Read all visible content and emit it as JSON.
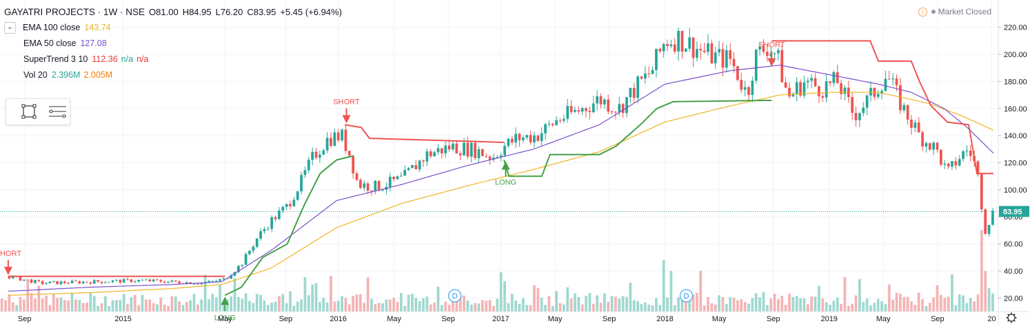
{
  "header": {
    "symbol": "GAYATRI PROJECTS · 1W · NSE",
    "open": "O81.00",
    "high": "H84.95",
    "low": "L76.20",
    "close": "C83.95",
    "change": "+5.45 (+6.94%)",
    "market_status": "Market Closed",
    "status_icon": "warning-icon"
  },
  "indicators": [
    {
      "name": "EMA 100 close",
      "values": [
        "143.74"
      ],
      "colors": [
        "#f0b323"
      ]
    },
    {
      "name": "EMA 50 close",
      "values": [
        "127.08"
      ],
      "colors": [
        "#7b4fc9"
      ]
    },
    {
      "name": "SuperTrend 3 10",
      "values": [
        "112.36",
        "n/a",
        "n/a"
      ],
      "colors": [
        "#e53935",
        "#26a69a",
        "#e53935"
      ]
    },
    {
      "name": "Vol 20",
      "values": [
        "2.396M",
        "2.005M"
      ],
      "colors": [
        "#26a69a",
        "#f57c00"
      ]
    }
  ],
  "chart_data": {
    "type": "candlestick",
    "y_axis": {
      "min": 10,
      "max": 230,
      "ticks": [
        20,
        40,
        60,
        80,
        100,
        120,
        140,
        160,
        180,
        200,
        220
      ],
      "tick_labels": [
        "20.00",
        "40.00",
        "60.00",
        "80.00",
        "100.00",
        "120.00",
        "140.00",
        "160.00",
        "180.00",
        "200.00",
        "220.00"
      ]
    },
    "x_axis": {
      "labels": [
        {
          "label": "Sep",
          "t": 0.1
        },
        {
          "label": "2015",
          "t": 0.7
        },
        {
          "label": "May",
          "t": 1.32
        },
        {
          "label": "Sep",
          "t": 1.69
        },
        {
          "label": "2016",
          "t": 2.01
        },
        {
          "label": "May",
          "t": 2.35
        },
        {
          "label": "Sep",
          "t": 2.68
        },
        {
          "label": "2017",
          "t": 3.0
        },
        {
          "label": "May",
          "t": 3.33
        },
        {
          "label": "Sep",
          "t": 3.66
        },
        {
          "label": "2018",
          "t": 4.0
        },
        {
          "label": "May",
          "t": 4.33
        },
        {
          "label": "Sep",
          "t": 4.66
        },
        {
          "label": "2019",
          "t": 5.0
        },
        {
          "label": "May",
          "t": 5.33
        },
        {
          "label": "Sep",
          "t": 5.66
        },
        {
          "label": "20",
          "t": 5.99
        }
      ]
    },
    "last_price": {
      "value": 83.95,
      "label": "83.95"
    },
    "price_path": [
      [
        0.0,
        36
      ],
      [
        0.2,
        31
      ],
      [
        0.5,
        32
      ],
      [
        0.8,
        33
      ],
      [
        1.0,
        32
      ],
      [
        1.2,
        31
      ],
      [
        1.32,
        34
      ],
      [
        1.42,
        45
      ],
      [
        1.52,
        65
      ],
      [
        1.6,
        77
      ],
      [
        1.7,
        88
      ],
      [
        1.78,
        105
      ],
      [
        1.86,
        125
      ],
      [
        1.95,
        138
      ],
      [
        2.03,
        140
      ],
      [
        2.08,
        126
      ],
      [
        2.13,
        104
      ],
      [
        2.25,
        102
      ],
      [
        2.4,
        108
      ],
      [
        2.55,
        126
      ],
      [
        2.7,
        132
      ],
      [
        2.85,
        129
      ],
      [
        2.95,
        124
      ],
      [
        3.02,
        132
      ],
      [
        3.1,
        138
      ],
      [
        3.22,
        140
      ],
      [
        3.35,
        152
      ],
      [
        3.5,
        160
      ],
      [
        3.6,
        167
      ],
      [
        3.72,
        160
      ],
      [
        3.82,
        175
      ],
      [
        3.92,
        188
      ],
      [
        4.0,
        210
      ],
      [
        4.08,
        212
      ],
      [
        4.2,
        204
      ],
      [
        4.3,
        198
      ],
      [
        4.4,
        196
      ],
      [
        4.5,
        170
      ],
      [
        4.55,
        198
      ],
      [
        4.62,
        206
      ],
      [
        4.68,
        200
      ],
      [
        4.75,
        168
      ],
      [
        4.85,
        180
      ],
      [
        4.95,
        175
      ],
      [
        5.05,
        180
      ],
      [
        5.15,
        155
      ],
      [
        5.25,
        168
      ],
      [
        5.35,
        185
      ],
      [
        5.45,
        160
      ],
      [
        5.55,
        140
      ],
      [
        5.65,
        130
      ],
      [
        5.72,
        112
      ],
      [
        5.8,
        125
      ],
      [
        5.85,
        130
      ],
      [
        5.9,
        115
      ],
      [
        5.95,
        70
      ],
      [
        6.0,
        84
      ]
    ],
    "ema100": [
      [
        0.0,
        22
      ],
      [
        0.5,
        24
      ],
      [
        1.0,
        27
      ],
      [
        1.3,
        30
      ],
      [
        1.6,
        42
      ],
      [
        2.0,
        72
      ],
      [
        2.4,
        90
      ],
      [
        2.8,
        103
      ],
      [
        3.2,
        115
      ],
      [
        3.6,
        128
      ],
      [
        4.0,
        150
      ],
      [
        4.4,
        162
      ],
      [
        4.7,
        170
      ],
      [
        5.0,
        172
      ],
      [
        5.3,
        172
      ],
      [
        5.6,
        164
      ],
      [
        5.8,
        155
      ],
      [
        6.0,
        144
      ]
    ],
    "ema50": [
      [
        0.0,
        25
      ],
      [
        0.5,
        28
      ],
      [
        1.0,
        30
      ],
      [
        1.3,
        32
      ],
      [
        1.6,
        55
      ],
      [
        2.0,
        92
      ],
      [
        2.4,
        104
      ],
      [
        2.8,
        118
      ],
      [
        3.2,
        130
      ],
      [
        3.6,
        148
      ],
      [
        4.0,
        178
      ],
      [
        4.4,
        188
      ],
      [
        4.7,
        192
      ],
      [
        5.0,
        185
      ],
      [
        5.3,
        178
      ],
      [
        5.5,
        172
      ],
      [
        5.7,
        160
      ],
      [
        5.85,
        145
      ],
      [
        6.0,
        127
      ]
    ],
    "supertrend_up": [
      [
        [
          1.32,
          22
        ],
        [
          1.42,
          28
        ],
        [
          1.55,
          50
        ],
        [
          1.7,
          60
        ],
        [
          1.8,
          88
        ],
        [
          1.9,
          112
        ],
        [
          2.0,
          122
        ],
        [
          2.1,
          125
        ]
      ],
      [
        [
          3.02,
          122
        ],
        [
          3.05,
          110
        ],
        [
          3.25,
          110
        ],
        [
          3.3,
          126
        ],
        [
          3.6,
          126
        ],
        [
          3.7,
          132
        ],
        [
          3.85,
          148
        ],
        [
          3.95,
          160
        ],
        [
          4.05,
          165
        ],
        [
          4.6,
          166
        ],
        [
          4.65,
          166
        ]
      ]
    ],
    "supertrend_down": [
      [
        [
          0.0,
          36
        ],
        [
          1.32,
          36
        ]
      ],
      [
        [
          2.05,
          148
        ],
        [
          2.15,
          146
        ],
        [
          2.2,
          138
        ],
        [
          3.02,
          135
        ]
      ],
      [
        [
          4.65,
          210
        ],
        [
          5.25,
          210
        ],
        [
          5.3,
          195
        ],
        [
          5.5,
          195
        ],
        [
          5.55,
          180
        ],
        [
          5.62,
          162
        ],
        [
          5.72,
          150
        ],
        [
          5.85,
          148
        ],
        [
          5.9,
          112
        ],
        [
          6.0,
          112
        ]
      ]
    ],
    "signals": [
      {
        "label": "SHORT",
        "type": "short",
        "t": 0.0,
        "value": 36
      },
      {
        "label": "LONG",
        "type": "long",
        "t": 1.32,
        "value": 22
      },
      {
        "label": "SHORT",
        "type": "short",
        "t": 2.06,
        "value": 148
      },
      {
        "label": "LONG",
        "type": "long",
        "t": 3.03,
        "value": 122
      },
      {
        "label": "SHORT",
        "type": "short",
        "t": 4.65,
        "value": 190
      }
    ],
    "volume_spikes": [
      [
        1.72,
        15
      ],
      [
        1.85,
        20
      ],
      [
        3.0,
        29
      ],
      [
        3.4,
        18
      ],
      [
        4.0,
        38
      ],
      [
        4.03,
        30
      ],
      [
        4.93,
        19
      ],
      [
        5.55,
        14
      ],
      [
        5.92,
        42
      ],
      [
        5.96,
        30
      ],
      [
        2.0,
        8
      ]
    ],
    "dividend_markers": [
      {
        "label": "D",
        "t": 2.72
      },
      {
        "label": "D",
        "t": 4.13
      }
    ]
  }
}
